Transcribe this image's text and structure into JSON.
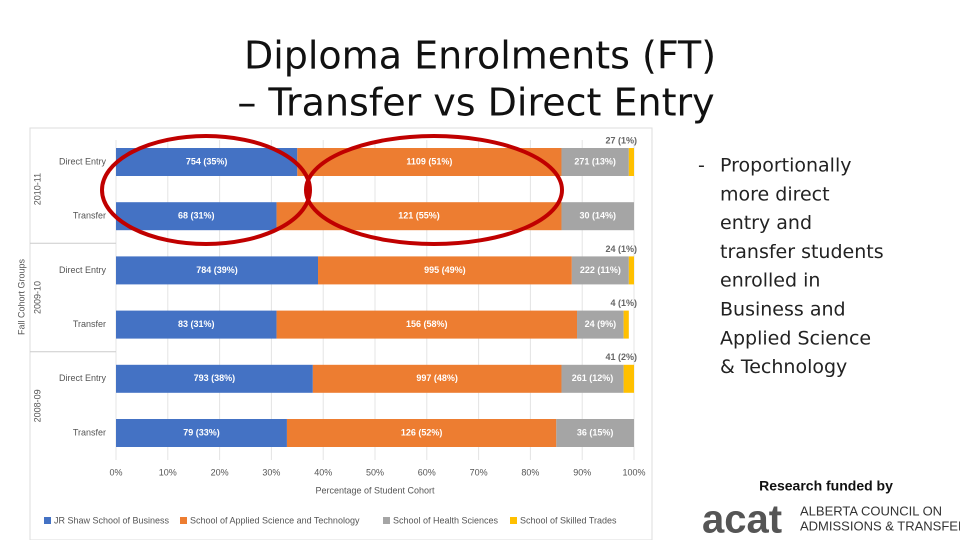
{
  "slide": {
    "title": [
      "Diploma Enrolments (FT)",
      "– Transfer vs Direct Entry"
    ],
    "bullet_lines": [
      "Proportionally",
      "more direct",
      "entry and",
      "transfer students",
      "enrolled in",
      "Business and",
      "Applied Science",
      "& Technology"
    ],
    "funding": "Research funded by",
    "logo": "acat",
    "logo_lines": [
      "ALBERTA COUNCIL ON",
      "ADMISSIONS & TRANSFER"
    ]
  },
  "chart_data": {
    "type": "stacked-bar-horizontal",
    "categories": [
      "Direct Entry",
      "Transfer",
      "Direct Entry",
      "Transfer",
      "Direct Entry",
      "Transfer"
    ],
    "category_groups": [
      "2010-11",
      "2009-10",
      "2008-09"
    ],
    "y_label": "Fall Cohort Groups",
    "x_label": "Percentage of Student Cohort",
    "xlim": [
      0,
      100
    ],
    "xticks": [
      {
        "value": 0,
        "label": "0%"
      },
      {
        "value": 10,
        "label": "10%"
      },
      {
        "value": 20,
        "label": "20%"
      },
      {
        "value": 30,
        "label": "30%"
      },
      {
        "value": 40,
        "label": "40%"
      },
      {
        "value": 50,
        "label": "50%"
      },
      {
        "value": 60,
        "label": "60%"
      },
      {
        "value": 70,
        "label": "70%"
      },
      {
        "value": 80,
        "label": "80%"
      },
      {
        "value": 90,
        "label": "90%"
      },
      {
        "value": 100,
        "label": "100%"
      }
    ],
    "grid": true,
    "series": [
      {
        "name": "JR Shaw School of Business",
        "color": "#4472c4",
        "values": [
          35,
          31,
          39,
          31,
          38,
          33
        ],
        "value_labels": [
          "754 (35%)",
          "68 (31%)",
          "784 (39%)",
          "83 (31%)",
          "793 (38%)",
          "79 (33%)"
        ]
      },
      {
        "name": "School of Applied Science and Technology",
        "color": "#ed7d31",
        "values": [
          51,
          55,
          49,
          58,
          48,
          52
        ],
        "value_labels": [
          "1109 (51%)",
          "121 (55%)",
          "995 (49%)",
          "156 (58%)",
          "997 (48%)",
          "126 (52%)"
        ]
      },
      {
        "name": "School of Health Sciences",
        "color": "#a5a5a5",
        "values": [
          13,
          14,
          11,
          9,
          12,
          15
        ],
        "value_labels": [
          "271 (13%)",
          "30 (14%)",
          "222 (11%)",
          "24 (9%)",
          "261 (12%)",
          "36 (15%)"
        ]
      },
      {
        "name": "School of Skilled Trades",
        "color": "#ffc000",
        "values": [
          1,
          null,
          1,
          1,
          2,
          null
        ],
        "value_labels": [
          "27 (1%)",
          null,
          "24 (1%)",
          "4 (1%)",
          "41 (2%)",
          null
        ]
      }
    ]
  }
}
